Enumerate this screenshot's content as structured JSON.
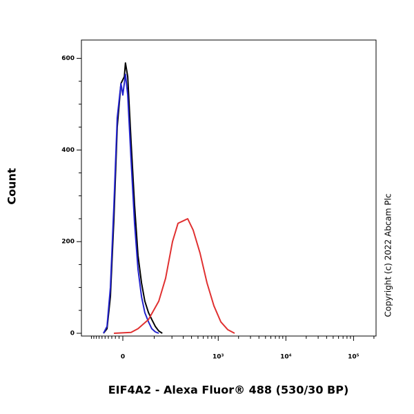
{
  "chart_data": {
    "type": "line",
    "x_label": "EIF4A2 - Alexa Fluor® 488 (530/30 BP)",
    "y_label": "Count",
    "annotation": "Copyright (c) 2022 Abcam Plc",
    "xscale": "biexponential",
    "xlim": [
      -150,
      215000
    ],
    "ylim": [
      -6,
      640
    ],
    "xticks": [
      0,
      {
        "value": 1000,
        "label": "10³"
      },
      {
        "value": 10000,
        "label": "10⁴"
      },
      {
        "value": 100000,
        "label": "10⁵"
      }
    ],
    "xminor_ticks": [
      -100,
      -90,
      -80,
      -70,
      -60,
      -50,
      -40,
      -30,
      -20,
      -10,
      100,
      200,
      300,
      400,
      500,
      600,
      700,
      800,
      900,
      2000,
      3000,
      4000,
      5000,
      6000,
      7000,
      8000,
      9000,
      20000,
      30000,
      40000,
      50000,
      60000,
      70000,
      80000,
      90000,
      200000
    ],
    "yticks": [
      0,
      200,
      400,
      600
    ],
    "yminor_ticks": [
      50,
      100,
      150,
      250,
      300,
      350,
      450,
      500,
      550
    ],
    "series": [
      {
        "color": "#000000",
        "x": [
          -55,
          -44,
          -34,
          -24,
          -15,
          -5,
          4,
          7,
          13,
          22,
          32,
          42,
          53,
          64,
          77,
          90,
          105,
          121,
          139
        ],
        "values": [
          0,
          10,
          80,
          250,
          450,
          545,
          560,
          590,
          560,
          420,
          280,
          170,
          110,
          70,
          45,
          30,
          15,
          5,
          0
        ]
      },
      {
        "color": "#2222cc",
        "x": [
          -55,
          -44,
          -34,
          -24,
          -15,
          -5,
          0,
          7,
          13,
          22,
          32,
          42,
          53,
          64,
          77,
          90,
          105,
          121
        ],
        "values": [
          0,
          15,
          100,
          280,
          470,
          545,
          520,
          565,
          520,
          380,
          240,
          140,
          80,
          45,
          25,
          10,
          3,
          0
        ]
      },
      {
        "color": "#e03030",
        "x": [
          -24,
          22,
          42,
          77,
          121,
          158,
          204,
          249,
          296,
          350,
          424,
          537,
          682,
          863,
          1092,
          1381,
          1747
        ],
        "values": [
          0,
          2,
          10,
          30,
          70,
          120,
          200,
          240,
          245,
          250,
          225,
          175,
          110,
          60,
          25,
          8,
          0
        ]
      }
    ]
  }
}
